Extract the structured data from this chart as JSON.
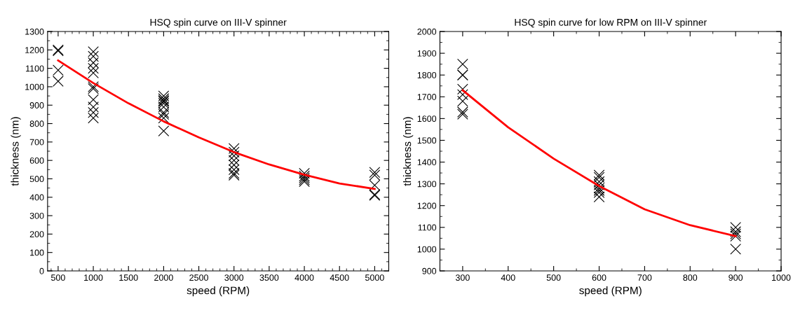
{
  "chart_data": [
    {
      "type": "scatter",
      "title": "HSQ spin curve on III-V spinner",
      "xlabel": "speed (RPM)",
      "ylabel": "thickness (nm)",
      "xlim": [
        350,
        5200
      ],
      "ylim": [
        0,
        1300
      ],
      "xticks": [
        500,
        1000,
        1500,
        2000,
        2500,
        3000,
        3500,
        4000,
        4500,
        5000
      ],
      "yticks": [
        0,
        100,
        200,
        300,
        400,
        500,
        600,
        700,
        800,
        900,
        1000,
        1100,
        1200,
        1300
      ],
      "grid": false,
      "legend": false,
      "series": [
        {
          "marker": "cross",
          "color": "#000000",
          "x": [
            500,
            500,
            500,
            500,
            1000,
            1000,
            1000,
            1000,
            1000,
            1000,
            1000,
            1000,
            1000,
            1000,
            1000,
            2000,
            2000,
            2000,
            2000,
            2000,
            2000,
            2000,
            2000,
            2000,
            2000,
            3000,
            3000,
            3000,
            3000,
            3000,
            3000,
            3000,
            3000,
            4000,
            4000,
            4000,
            4000,
            4000,
            5000,
            5000,
            5000,
            5000,
            5000
          ],
          "values": [
            1200,
            1195,
            1090,
            1030,
            1190,
            1165,
            1130,
            1100,
            1075,
            1000,
            990,
            930,
            890,
            860,
            830,
            950,
            935,
            925,
            920,
            910,
            890,
            860,
            850,
            830,
            760,
            665,
            645,
            625,
            600,
            575,
            550,
            530,
            520,
            530,
            515,
            505,
            495,
            485,
            535,
            520,
            465,
            415,
            410
          ]
        },
        {
          "type": "line",
          "marker": "none",
          "color": "#ff0000",
          "x": [
            500,
            1000,
            1500,
            2000,
            2500,
            3000,
            3500,
            4000,
            4500,
            5000
          ],
          "values": [
            1143,
            1020,
            910,
            812,
            725,
            645,
            578,
            522,
            475,
            445
          ]
        }
      ]
    },
    {
      "type": "scatter",
      "title": "HSQ spin curve for low RPM on III-V spinner",
      "xlabel": "speed (RPM)",
      "ylabel": "thickness (nm)",
      "xlim": [
        250,
        1000
      ],
      "ylim": [
        900,
        2000
      ],
      "xticks": [
        300,
        400,
        500,
        600,
        700,
        800,
        900,
        1000
      ],
      "yticks": [
        900,
        1000,
        1100,
        1200,
        1300,
        1400,
        1500,
        1600,
        1700,
        1800,
        1900,
        2000
      ],
      "grid": false,
      "legend": false,
      "series": [
        {
          "marker": "cross",
          "color": "#000000",
          "x": [
            300,
            300,
            300,
            300,
            300,
            300,
            300,
            300,
            600,
            600,
            600,
            600,
            600,
            600,
            600,
            600,
            900,
            900,
            900,
            900,
            900
          ],
          "values": [
            1850,
            1800,
            1800,
            1735,
            1710,
            1680,
            1630,
            1620,
            1340,
            1330,
            1310,
            1295,
            1280,
            1270,
            1260,
            1240,
            1100,
            1080,
            1070,
            1060,
            1000
          ]
        },
        {
          "type": "line",
          "marker": "none",
          "color": "#ff0000",
          "x": [
            300,
            400,
            500,
            600,
            700,
            800,
            900
          ],
          "values": [
            1730,
            1560,
            1416,
            1290,
            1183,
            1110,
            1060
          ]
        }
      ]
    }
  ]
}
